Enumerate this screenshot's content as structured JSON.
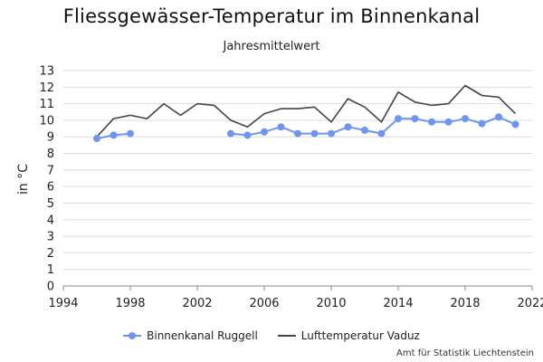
{
  "chart_data": {
    "type": "line",
    "title": "Fliessgewässer-Temperatur im Binnenkanal",
    "subtitle": "Jahresmittelwert",
    "ylabel": "in °C",
    "xlim": [
      1994,
      2022
    ],
    "ylim": [
      0,
      13
    ],
    "x_ticks": [
      "1994",
      "1998",
      "2002",
      "2006",
      "2010",
      "2014",
      "2018",
      "2022"
    ],
    "y_ticks": [
      "0",
      "1",
      "2",
      "3",
      "4",
      "5",
      "6",
      "7",
      "8",
      "9",
      "10",
      "11",
      "12",
      "13"
    ],
    "grid": true,
    "legend_position": "bottom",
    "series": [
      {
        "name": "Binnenkanal Ruggell",
        "color": "#6d95f2",
        "marker": "circle",
        "points": [
          [
            1996,
            8.9
          ],
          [
            1997,
            9.1
          ],
          [
            1998,
            9.2
          ],
          [
            2004,
            9.2
          ],
          [
            2005,
            9.1
          ],
          [
            2006,
            9.3
          ],
          [
            2007,
            9.6
          ],
          [
            2008,
            9.2
          ],
          [
            2009,
            9.2
          ],
          [
            2010,
            9.2
          ],
          [
            2011,
            9.6
          ],
          [
            2012,
            9.4
          ],
          [
            2013,
            9.2
          ],
          [
            2014,
            10.1
          ],
          [
            2015,
            10.1
          ],
          [
            2016,
            9.9
          ],
          [
            2017,
            9.9
          ],
          [
            2018,
            10.1
          ],
          [
            2019,
            9.8
          ],
          [
            2020,
            10.2
          ],
          [
            2021,
            9.75
          ]
        ],
        "segments": [
          [
            1996,
            1998
          ],
          [
            2004,
            2021
          ]
        ]
      },
      {
        "name": "Lufttemperatur Vaduz",
        "color": "#444444",
        "marker": "none",
        "points": [
          [
            1996,
            9.0
          ],
          [
            1997,
            10.1
          ],
          [
            1998,
            10.3
          ],
          [
            1999,
            10.1
          ],
          [
            2000,
            11.0
          ],
          [
            2001,
            10.3
          ],
          [
            2002,
            11.0
          ],
          [
            2003,
            10.9
          ],
          [
            2004,
            10.0
          ],
          [
            2005,
            9.6
          ],
          [
            2006,
            10.4
          ],
          [
            2007,
            10.7
          ],
          [
            2008,
            10.7
          ],
          [
            2009,
            10.8
          ],
          [
            2010,
            9.9
          ],
          [
            2011,
            11.3
          ],
          [
            2012,
            10.8
          ],
          [
            2013,
            9.9
          ],
          [
            2014,
            11.7
          ],
          [
            2015,
            11.1
          ],
          [
            2016,
            10.9
          ],
          [
            2017,
            11.0
          ],
          [
            2018,
            12.1
          ],
          [
            2019,
            11.5
          ],
          [
            2020,
            11.4
          ],
          [
            2021,
            10.4
          ]
        ],
        "segments": [
          [
            1996,
            2021
          ]
        ]
      }
    ]
  },
  "footer": {
    "source": "Amt für Statistik Liechtenstein"
  }
}
